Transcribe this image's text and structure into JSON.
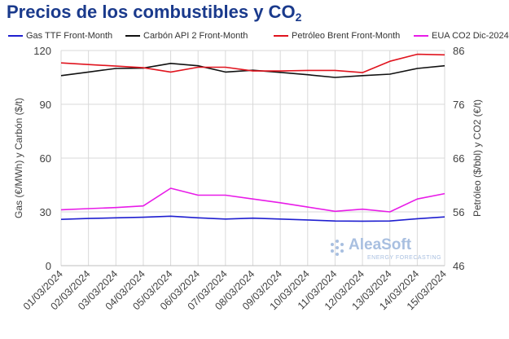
{
  "title": {
    "main": "Precios de los combustibles y CO",
    "sub": "2"
  },
  "chart_data": {
    "type": "line",
    "categories": [
      "01/03/2024",
      "02/03/2024",
      "03/03/2024",
      "04/03/2024",
      "05/03/2024",
      "06/03/2024",
      "07/03/2024",
      "08/03/2024",
      "09/03/2024",
      "10/03/2024",
      "11/03/2024",
      "12/03/2024",
      "13/03/2024",
      "14/03/2024",
      "15/03/2024"
    ],
    "ylabel": "Gas (€/MWh) y Carbón ($/t)",
    "y2label": "Petróleo ($/bbl) y CO2 (€/t)",
    "ylim": [
      0,
      120
    ],
    "y2lim": [
      46,
      86
    ],
    "yticks": [
      "0",
      "30",
      "60",
      "90",
      "120"
    ],
    "y2ticks": [
      "46",
      "56",
      "66",
      "76",
      "86"
    ],
    "grid": true,
    "legend_position": "top",
    "series": [
      {
        "name": "Gas TTF Front-Month",
        "axis": "left",
        "color": "#1f1fd0",
        "values": [
          25.8,
          26.3,
          26.7,
          27.0,
          27.6,
          26.7,
          26.0,
          26.5,
          26.0,
          25.5,
          24.9,
          24.8,
          24.9,
          26.2,
          27.2
        ]
      },
      {
        "name": "Carbón API 2 Front-Month",
        "axis": "left",
        "color": "#111111",
        "values": [
          106.0,
          108.0,
          110.0,
          110.2,
          112.8,
          111.5,
          108.0,
          109.0,
          107.8,
          106.5,
          105.0,
          106.0,
          106.8,
          110.0,
          111.5
        ]
      },
      {
        "name": "Petróleo Brent Front-Month",
        "axis": "right",
        "color": "#e0141e",
        "values": [
          83.7,
          83.4,
          83.1,
          82.8,
          82.0,
          82.9,
          82.9,
          82.2,
          82.2,
          82.3,
          82.3,
          81.9,
          84.0,
          85.3,
          85.2
        ]
      },
      {
        "name": "EUA CO2 Dic-2024",
        "axis": "right",
        "color": "#e81ce8",
        "values": [
          56.4,
          56.6,
          56.8,
          57.1,
          60.4,
          59.1,
          59.1,
          58.4,
          57.7,
          56.9,
          56.1,
          56.5,
          56.0,
          58.4,
          59.4
        ]
      }
    ]
  },
  "watermark": {
    "name": "AleaSoft",
    "tagline": "ENERGY FORECASTING"
  }
}
